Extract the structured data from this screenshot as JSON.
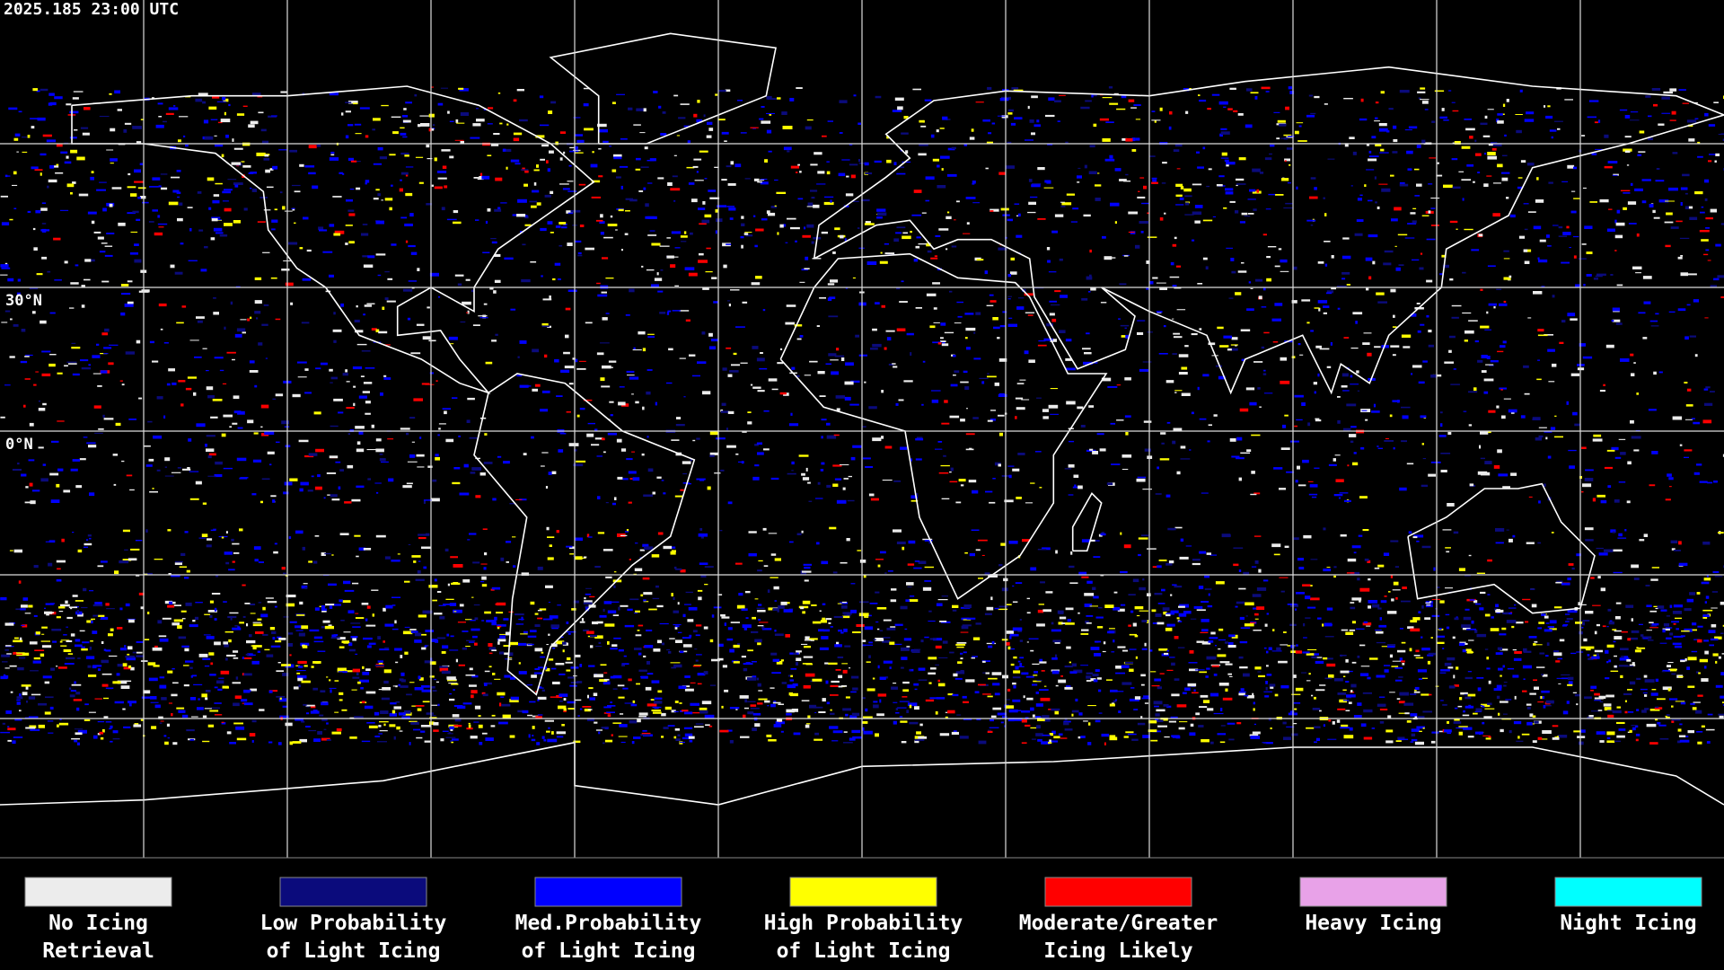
{
  "map": {
    "timestamp": "2025.185 23:00 UTC",
    "lat_labels": [
      "30°N",
      "0°N"
    ],
    "legend": [
      {
        "label": [
          "No Icing",
          "Retrieval"
        ],
        "color": "#ececec"
      },
      {
        "label": [
          "Low Probability",
          "of Light Icing"
        ],
        "color": "#0b0b7c"
      },
      {
        "label": [
          "Med.Probability",
          "of Light Icing"
        ],
        "color": "#0000ff"
      },
      {
        "label": [
          "High Probability",
          "of Light Icing"
        ],
        "color": "#ffff00"
      },
      {
        "label": [
          "Moderate/Greater",
          "Icing Likely"
        ],
        "color": "#ff0000"
      },
      {
        "label": [
          "Heavy Icing"
        ],
        "color": "#e8a2e8"
      },
      {
        "label": [
          "Night Icing"
        ],
        "color": "#00ffff"
      }
    ]
  }
}
